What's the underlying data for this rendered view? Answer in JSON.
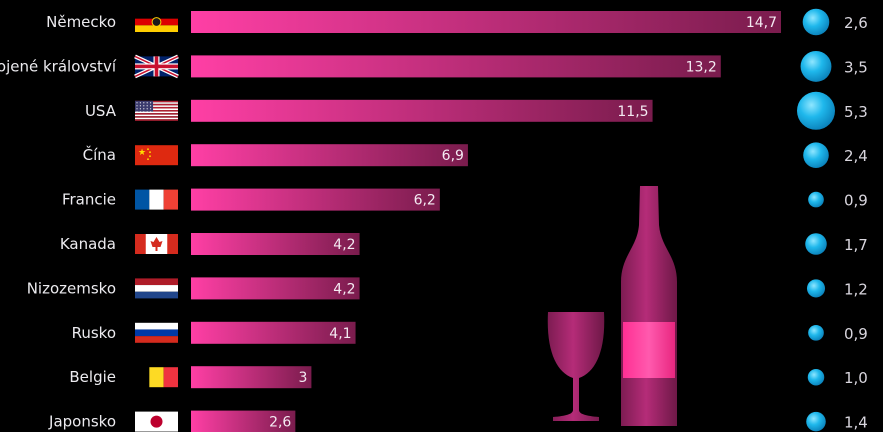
{
  "chart_data": {
    "type": "bar",
    "orientation": "horizontal",
    "categories": [
      "Německo",
      "Spojené království",
      "USA",
      "Čína",
      "Francie",
      "Kanada",
      "Nizozemsko",
      "Rusko",
      "Belgie",
      "Japonsko"
    ],
    "values": [
      14.7,
      13.2,
      11.5,
      6.9,
      6.2,
      4.2,
      4.2,
      4.1,
      3.0,
      2.6
    ],
    "value_labels": [
      "14,7",
      "13,2",
      "11,5",
      "6,9",
      "6,2",
      "4,2",
      "4,2",
      "4,1",
      "3",
      "2,6"
    ],
    "bubbles": [
      2.6,
      3.5,
      5.3,
      2.4,
      0.9,
      1.7,
      1.2,
      0.9,
      1.0,
      1.4
    ],
    "bubble_labels": [
      "2,6",
      "3,5",
      "5,3",
      "2,4",
      "0,9",
      "1,7",
      "1,2",
      "0,9",
      "1,0",
      "1,4"
    ],
    "flags": [
      "germany-flag",
      "uk-flag",
      "usa-flag",
      "china-flag",
      "france-flag",
      "canada-flag",
      "netherlands-flag",
      "russia-flag",
      "belgium-flag",
      "japan-flag"
    ],
    "title": "",
    "xlabel": "",
    "ylabel": "",
    "xlim": [
      0,
      14.7
    ],
    "grid": false,
    "legend": "none"
  },
  "colors": {
    "background": "#000000",
    "bar_start": "#ff3fa5",
    "bar_end": "#7a1c4d",
    "bubble": "#19b3e8",
    "bubble_highlight": "#7fe0ff",
    "wine": "#b02a73",
    "bottle_label": "#ff3e9a"
  },
  "decor": {
    "wine_glass": "wine-glass-icon",
    "wine_bottle": "wine-bottle-icon"
  }
}
